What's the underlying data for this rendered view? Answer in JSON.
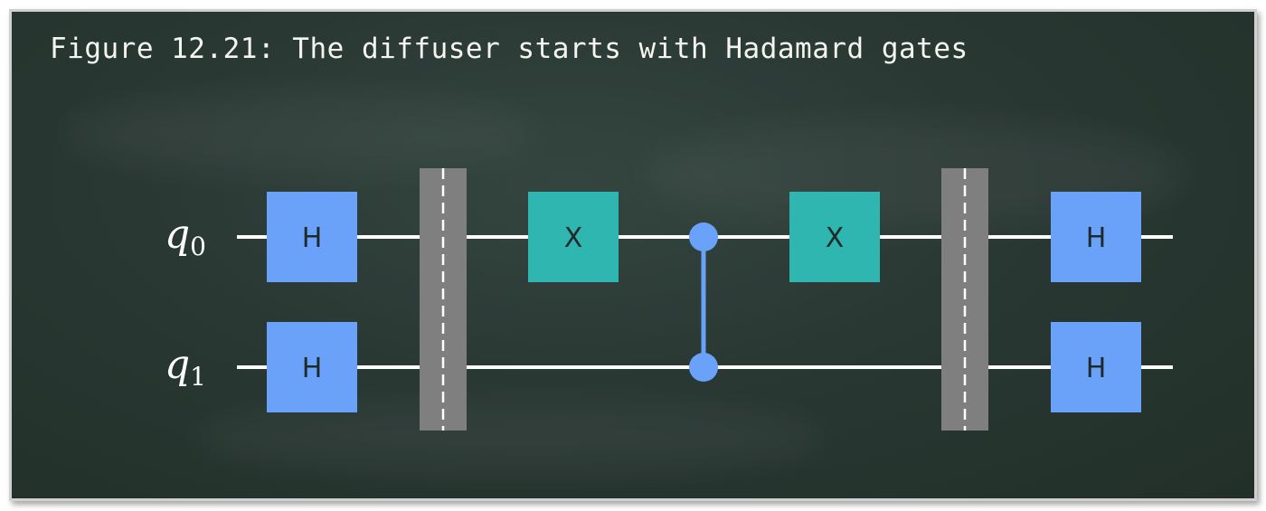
{
  "figure": {
    "title": "Figure 12.21: The diffuser starts with Hadamard gates"
  },
  "circuit": {
    "qubits": [
      {
        "id": "q0",
        "base": "q",
        "sub": "0"
      },
      {
        "id": "q1",
        "base": "q",
        "sub": "1"
      }
    ],
    "gates": [
      {
        "type": "H",
        "label": "H",
        "qubit": 0,
        "step": 0
      },
      {
        "type": "H",
        "label": "H",
        "qubit": 1,
        "step": 0
      },
      {
        "type": "barrier",
        "step": 1
      },
      {
        "type": "X",
        "label": "X",
        "qubit": 0,
        "step": 2
      },
      {
        "type": "CZ",
        "qubits": [
          0,
          1
        ],
        "step": 3
      },
      {
        "type": "X",
        "label": "X",
        "qubit": 0,
        "step": 4
      },
      {
        "type": "barrier",
        "step": 5
      },
      {
        "type": "H",
        "label": "H",
        "qubit": 0,
        "step": 6
      },
      {
        "type": "H",
        "label": "H",
        "qubit": 1,
        "step": 6
      }
    ]
  },
  "colors": {
    "board": "#2a3834",
    "wire": "#ffffff",
    "h_gate": "#6aa2f9",
    "x_gate": "#2fb6b0",
    "control": "#6aa2f9",
    "barrier": "#7f7f7f",
    "gate_text": "#1f2a2a",
    "qubit_label": "#ffffff"
  }
}
